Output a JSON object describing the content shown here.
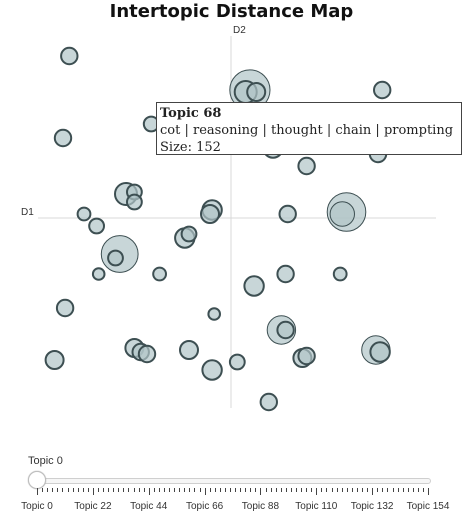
{
  "chart_data": {
    "type": "scatter",
    "title": "Intertopic Distance Map",
    "xlabel": "D1",
    "ylabel": "D2",
    "xlim": [
      -1,
      1
    ],
    "ylim": [
      -1,
      1
    ],
    "grid": false,
    "points": [
      {
        "x": -0.77,
        "y": 0.81,
        "size": 10
      },
      {
        "x": 0.09,
        "y": 0.64,
        "size": 60
      },
      {
        "x": 0.07,
        "y": 0.63,
        "size": 18
      },
      {
        "x": 0.12,
        "y": 0.63,
        "size": 12
      },
      {
        "x": 0.72,
        "y": 0.64,
        "size": 10
      },
      {
        "x": -0.38,
        "y": 0.47,
        "size": 8
      },
      {
        "x": -0.26,
        "y": 0.39,
        "size": 22
      },
      {
        "x": -0.25,
        "y": 0.4,
        "size": 10
      },
      {
        "x": -0.8,
        "y": 0.4,
        "size": 10
      },
      {
        "x": 0.2,
        "y": 0.35,
        "size": 14
      },
      {
        "x": 0.36,
        "y": 0.26,
        "size": 10
      },
      {
        "x": 0.7,
        "y": 0.32,
        "size": 10
      },
      {
        "x": -0.5,
        "y": 0.12,
        "size": 18
      },
      {
        "x": -0.46,
        "y": 0.13,
        "size": 8
      },
      {
        "x": -0.46,
        "y": 0.08,
        "size": 8
      },
      {
        "x": -0.7,
        "y": 0.02,
        "size": 6
      },
      {
        "x": -0.64,
        "y": -0.04,
        "size": 8
      },
      {
        "x": -0.09,
        "y": 0.04,
        "size": 14
      },
      {
        "x": -0.1,
        "y": 0.02,
        "size": 12
      },
      {
        "x": 0.27,
        "y": 0.02,
        "size": 10
      },
      {
        "x": 0.55,
        "y": 0.03,
        "size": 55
      },
      {
        "x": 0.53,
        "y": 0.02,
        "size": 22
      },
      {
        "x": -0.53,
        "y": -0.18,
        "size": 50
      },
      {
        "x": -0.55,
        "y": -0.2,
        "size": 8
      },
      {
        "x": -0.22,
        "y": -0.1,
        "size": 14
      },
      {
        "x": -0.2,
        "y": -0.08,
        "size": 8
      },
      {
        "x": -0.63,
        "y": -0.28,
        "size": 5
      },
      {
        "x": -0.34,
        "y": -0.28,
        "size": 6
      },
      {
        "x": 0.26,
        "y": -0.28,
        "size": 10
      },
      {
        "x": 0.52,
        "y": -0.28,
        "size": 6
      },
      {
        "x": 0.11,
        "y": -0.34,
        "size": 14
      },
      {
        "x": -0.79,
        "y": -0.45,
        "size": 10
      },
      {
        "x": -0.08,
        "y": -0.48,
        "size": 5
      },
      {
        "x": 0.24,
        "y": -0.56,
        "size": 30
      },
      {
        "x": 0.26,
        "y": -0.56,
        "size": 10
      },
      {
        "x": -0.46,
        "y": -0.65,
        "size": 12
      },
      {
        "x": -0.43,
        "y": -0.67,
        "size": 10
      },
      {
        "x": -0.4,
        "y": -0.68,
        "size": 10
      },
      {
        "x": -0.2,
        "y": -0.66,
        "size": 12
      },
      {
        "x": 0.34,
        "y": -0.7,
        "size": 12
      },
      {
        "x": 0.36,
        "y": -0.69,
        "size": 10
      },
      {
        "x": 0.69,
        "y": -0.66,
        "size": 30
      },
      {
        "x": 0.71,
        "y": -0.67,
        "size": 14
      },
      {
        "x": -0.84,
        "y": -0.71,
        "size": 12
      },
      {
        "x": 0.03,
        "y": -0.72,
        "size": 8
      },
      {
        "x": -0.09,
        "y": -0.76,
        "size": 14
      },
      {
        "x": 0.18,
        "y": -0.92,
        "size": 10
      }
    ],
    "tooltip": {
      "title": "Topic 68",
      "words": "cot | reasoning | thought | chain | prompting",
      "size_text": "Size: 152"
    },
    "slider": {
      "label": "Topic 0",
      "value": 0,
      "min": 0,
      "max": 154,
      "tick_labels": [
        "Topic 0",
        "Topic 22",
        "Topic 44",
        "Topic 66",
        "Topic 88",
        "Topic 110",
        "Topic 132",
        "Topic 154"
      ]
    },
    "colors": {
      "bubble_fill": "#b0c4c8",
      "bubble_stroke": "#3d4f52",
      "axis": "#d8d8d8"
    }
  }
}
